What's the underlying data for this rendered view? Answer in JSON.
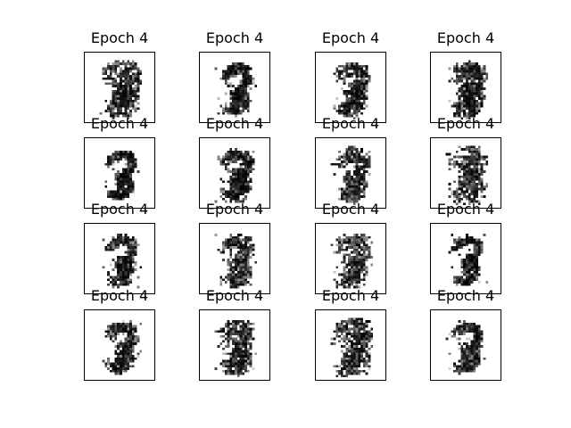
{
  "figure": {
    "background": "#ffffff",
    "panel_titles": [
      "Epoch 4",
      "Epoch 4",
      "Epoch 4",
      "Epoch 4",
      "Epoch 4",
      "Epoch 4",
      "Epoch 4",
      "Epoch 4",
      "Epoch 4",
      "Epoch 4",
      "Epoch 4",
      "Epoch 4",
      "Epoch 4",
      "Epoch 4",
      "Epoch 4",
      "Epoch 4"
    ],
    "image_description": "16 generated grayscale digit samples in a 4x4 grid, each a noisy dark scribble on white",
    "grid": {
      "rows": 4,
      "cols": 4
    },
    "frame_color": "#000000"
  }
}
